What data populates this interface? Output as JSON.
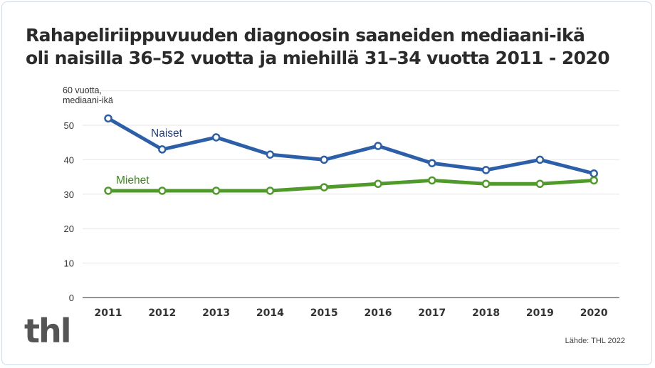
{
  "title_lines": [
    "Rahapeliriippuvuuden diagnoosin saaneiden mediaani-ikä",
    "oli naisilla 36–52 vuotta ja miehillä 31–34 vuotta 2011 - 2020"
  ],
  "logo_text": "thl",
  "source": "Lähde: THL 2022",
  "chart_data": {
    "type": "line",
    "title": "Rahapeliriippuvuuden diagnoosin saaneiden mediaani-ikä oli naisilla 36–52 vuotta ja miehillä 31–34 vuotta 2011 - 2020",
    "ylabel_lines": [
      "60 vuotta,",
      "mediaani-ikä"
    ],
    "ylim": [
      0,
      60
    ],
    "yticks": [
      0,
      10,
      20,
      30,
      40,
      50
    ],
    "grid": true,
    "x": [
      "2011",
      "2012",
      "2013",
      "2014",
      "2015",
      "2016",
      "2017",
      "2018",
      "2019",
      "2020"
    ],
    "series": [
      {
        "name": "Naiset",
        "color": "#2d5fa8",
        "label_color": "#1f3f8a",
        "values": [
          52,
          43,
          46.5,
          41.5,
          40,
          44,
          39,
          37,
          40,
          36
        ]
      },
      {
        "name": "Miehet",
        "color": "#4f9a2a",
        "label_color": "#3e8a1e",
        "values": [
          31,
          31,
          31,
          31,
          32,
          33,
          34,
          33,
          33,
          34
        ]
      }
    ]
  }
}
